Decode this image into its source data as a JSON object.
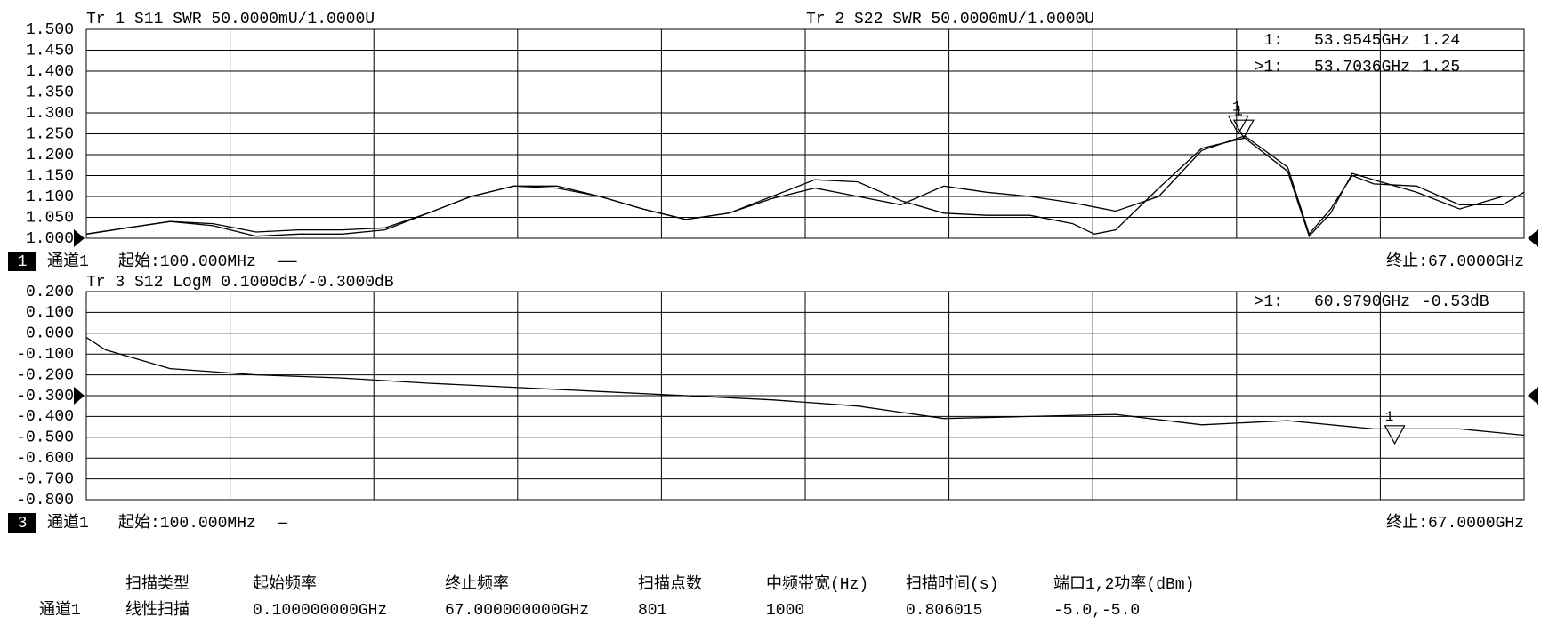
{
  "chart_data": [
    {
      "type": "line",
      "x": [
        0.1,
        2,
        4,
        6,
        8,
        10,
        12,
        14,
        16,
        18,
        20,
        22,
        24,
        26,
        28,
        30,
        32,
        34,
        36,
        38,
        40,
        42,
        44,
        46,
        47,
        48,
        50,
        52,
        54,
        56,
        57,
        58,
        59,
        60,
        62,
        64,
        66,
        67
      ],
      "xlim": [
        0.1,
        67
      ],
      "series": [
        {
          "name": "Tr 1  S11 SWR 50.0000mU/1.0000U",
          "color": "#000000",
          "values": [
            1.01,
            1.025,
            1.04,
            1.035,
            1.015,
            1.02,
            1.02,
            1.025,
            1.06,
            1.1,
            1.125,
            1.125,
            1.1,
            1.07,
            1.045,
            1.06,
            1.1,
            1.14,
            1.135,
            1.09,
            1.06,
            1.055,
            1.055,
            1.035,
            1.01,
            1.02,
            1.12,
            1.215,
            1.24,
            1.16,
            1.005,
            1.06,
            1.155,
            1.14,
            1.11,
            1.07,
            1.1,
            1.1
          ]
        },
        {
          "name": "Tr 2  S22 SWR 50.0000mU/1.0000U",
          "color": "#000000",
          "values": [
            1.01,
            1.025,
            1.04,
            1.03,
            1.005,
            1.01,
            1.01,
            1.02,
            1.06,
            1.1,
            1.125,
            1.12,
            1.1,
            1.07,
            1.045,
            1.06,
            1.095,
            1.12,
            1.1,
            1.08,
            1.125,
            1.11,
            1.1,
            1.085,
            1.075,
            1.065,
            1.1,
            1.21,
            1.245,
            1.17,
            1.01,
            1.07,
            1.15,
            1.13,
            1.125,
            1.08,
            1.08,
            1.11
          ]
        }
      ],
      "ylim": [
        1.0,
        1.5
      ],
      "yticks": [
        {
          "value": 1.5,
          "label": "1.500"
        },
        {
          "value": 1.45,
          "label": "1.450"
        },
        {
          "value": 1.4,
          "label": "1.400"
        },
        {
          "value": 1.35,
          "label": "1.350"
        },
        {
          "value": 1.3,
          "label": "1.300"
        },
        {
          "value": 1.25,
          "label": "1.250"
        },
        {
          "value": 1.2,
          "label": "1.200"
        },
        {
          "value": 1.15,
          "label": "1.150"
        },
        {
          "value": 1.1,
          "label": "1.100"
        },
        {
          "value": 1.05,
          "label": "1.050"
        },
        {
          "value": 1.0,
          "label": "1.000"
        }
      ],
      "grid": true,
      "markers": [
        {
          "label": "1:",
          "x": 53.9545,
          "x_label": "53.9545GHz",
          "y": 1.24,
          "y_label": "1.24",
          "number": "1"
        },
        {
          "label": ">1:",
          "x": 53.7036,
          "x_label": "53.7036GHz",
          "y": 1.25,
          "y_label": "1.25",
          "number": "1"
        }
      ]
    },
    {
      "type": "line",
      "x": [
        0.1,
        1,
        4,
        8,
        12,
        16,
        20,
        24,
        28,
        32,
        36,
        40,
        44,
        48,
        52,
        56,
        60,
        64,
        66,
        67
      ],
      "xlim": [
        0.1,
        67
      ],
      "series": [
        {
          "name": "Tr 3  S12 LogM 0.1000dB/-0.3000dB",
          "color": "#000000",
          "values": [
            -0.02,
            -0.08,
            -0.17,
            -0.2,
            -0.215,
            -0.24,
            -0.26,
            -0.28,
            -0.3,
            -0.32,
            -0.35,
            -0.41,
            -0.4,
            -0.39,
            -0.44,
            -0.42,
            -0.46,
            -0.46,
            -0.48,
            -0.49
          ]
        }
      ],
      "ylim": [
        -0.8,
        0.2
      ],
      "yticks": [
        {
          "value": 0.2,
          "label": "0.200"
        },
        {
          "value": 0.1,
          "label": "0.100"
        },
        {
          "value": 0,
          "label": "0.000"
        },
        {
          "value": -0.1,
          "label": "-0.100"
        },
        {
          "value": -0.2,
          "label": "-0.200"
        },
        {
          "value": -0.3,
          "label": "-0.300"
        },
        {
          "value": -0.4,
          "label": "-0.400"
        },
        {
          "value": -0.5,
          "label": "-0.500"
        },
        {
          "value": -0.6,
          "label": "-0.600"
        },
        {
          "value": -0.7,
          "label": "-0.700"
        },
        {
          "value": -0.8,
          "label": "-0.800"
        }
      ],
      "grid": true,
      "markers": [
        {
          "label": ">1:",
          "x": 60.979,
          "x_label": "60.9790GHz",
          "y": -0.53,
          "y_label": "-0.53dB",
          "number": "1"
        }
      ]
    }
  ],
  "channels": [
    {
      "number": "1",
      "name": "通道1",
      "start": "起始:100.000MHz",
      "mark": "——",
      "stop": "终止:67.0000GHz"
    },
    {
      "number": "3",
      "name": "通道1",
      "start": "起始:100.000MHz",
      "mark": "—",
      "stop": "终止:67.0000GHz"
    }
  ],
  "table": {
    "headers": [
      "扫描类型",
      "起始频率",
      "终止频率",
      "扫描点数",
      "中频带宽(Hz)",
      "扫描时间(s)",
      "端口1,2功率(dBm)"
    ],
    "row_label": "通道1",
    "row": [
      "线性扫描",
      "0.100000000GHz",
      "67.000000000GHz",
      "801",
      "1000",
      "0.806015",
      "-5.0,-5.0"
    ]
  }
}
